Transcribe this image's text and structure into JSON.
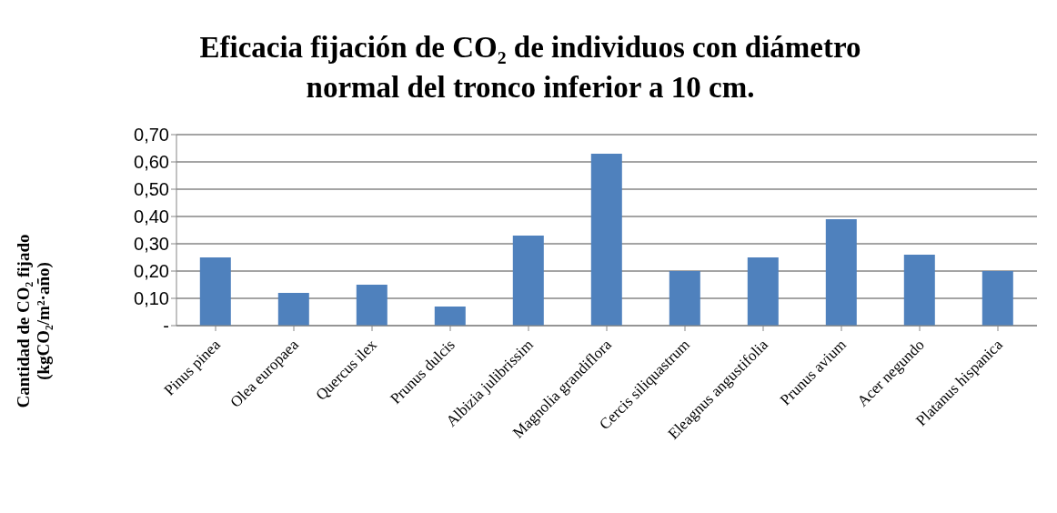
{
  "chart_data": {
    "type": "bar",
    "title": "Eficacia fijación de CO₂ de individuos con diámetro\nnormal del tronco inferior a 10 cm.",
    "ylabel": "Cantidad de CO₂ fijado\n(kgCO₂/m²·año)",
    "categories": [
      "Pinus pinea",
      "Olea europaea",
      "Quercus ilex",
      "Prunus dulcis",
      "Albizia julibrissim",
      "Magnolia grandiflora",
      "Cercis siliquastrum",
      "Eleagnus angustifolia",
      "Prunus avium",
      "Acer negundo",
      "Platanus hispanica"
    ],
    "values": [
      0.25,
      0.12,
      0.15,
      0.07,
      0.33,
      0.63,
      0.2,
      0.25,
      0.39,
      0.26,
      0.2
    ],
    "color": "#4f81bd",
    "ylim": [
      0,
      0.7
    ],
    "yticks": [
      {
        "value": 0,
        "label": "-"
      },
      {
        "value": 0.1,
        "label": "0,10"
      },
      {
        "value": 0.2,
        "label": "0,20"
      },
      {
        "value": 0.3,
        "label": "0,30"
      },
      {
        "value": 0.4,
        "label": "0,40"
      },
      {
        "value": 0.5,
        "label": "0,50"
      },
      {
        "value": 0.6,
        "label": "0,60"
      },
      {
        "value": 0.7,
        "label": "0,70"
      }
    ],
    "grid": "y",
    "legend": false
  }
}
